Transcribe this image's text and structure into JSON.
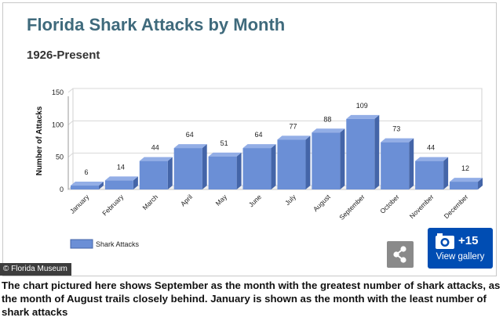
{
  "chart_data": {
    "type": "bar",
    "title": "Florida Shark Attacks by Month",
    "subtitle": "1926-Present",
    "ylabel": "Number of Attacks",
    "xlabel": "",
    "categories": [
      "January",
      "February",
      "March",
      "April",
      "May",
      "June",
      "July",
      "August",
      "September",
      "October",
      "November",
      "December"
    ],
    "series": [
      {
        "name": "Shark Attacks",
        "values": [
          6,
          14,
          44,
          64,
          51,
          64,
          77,
          88,
          109,
          73,
          44,
          12
        ]
      }
    ],
    "ylim": [
      0,
      150
    ],
    "yticks": [
      0,
      50,
      100,
      150
    ],
    "grid": true,
    "legend_position": "bottom-left",
    "bar_color": "#6b8fd6"
  },
  "credit": "© Florida Museum",
  "gallery": {
    "count": "+15",
    "label": "View gallery"
  },
  "icons": {
    "camera": "camera-icon",
    "share": "share-icon"
  },
  "caption": "The chart pictured here shows September as the month with the greatest number of shark attacks, as the month of August trails closely behind. January is shown as the month with the least number of shark attacks"
}
